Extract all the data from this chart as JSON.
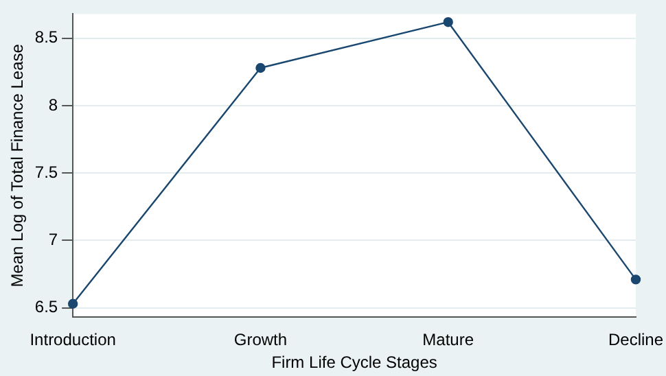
{
  "chart_data": {
    "type": "line",
    "xlabel": "Firm Life Cycle Stages",
    "ylabel": "Mean Log of Total Finance Lease",
    "categories": [
      "Introduction",
      "Growth",
      "Mature",
      "Decline"
    ],
    "series": [
      {
        "color": "#1a476f",
        "values": [
          6.53,
          8.28,
          8.62,
          6.71
        ]
      }
    ],
    "ylim": [
      6.43,
      8.68
    ],
    "yticks": [
      6.5,
      7,
      7.5,
      8,
      8.5
    ],
    "grid": "y",
    "marker": "circle",
    "line_style": "solid",
    "legend": false
  }
}
